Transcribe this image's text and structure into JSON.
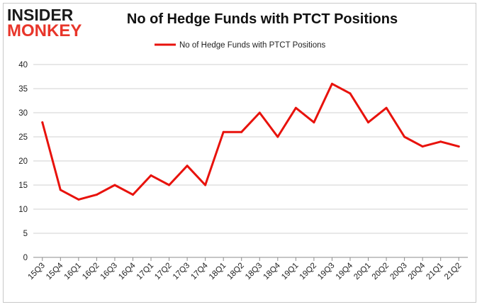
{
  "logo": {
    "top": "INSIDER",
    "bottom": "MONKEY"
  },
  "chart_data": {
    "type": "line",
    "title": "No of Hedge Funds with PTCT Positions",
    "xlabel": "",
    "ylabel": "",
    "ylim": [
      0,
      40
    ],
    "yticks": [
      0,
      5,
      10,
      15,
      20,
      25,
      30,
      35,
      40
    ],
    "grid": true,
    "legend": "top-center",
    "line_color": "#e8120c",
    "categories": [
      "15Q3",
      "15Q4",
      "16Q1",
      "16Q2",
      "16Q3",
      "16Q4",
      "17Q1",
      "17Q2",
      "17Q3",
      "17Q4",
      "18Q1",
      "18Q2",
      "18Q3",
      "18Q4",
      "19Q1",
      "19Q2",
      "19Q3",
      "19Q4",
      "20Q1",
      "20Q2",
      "20Q3",
      "20Q4",
      "21Q1",
      "21Q2"
    ],
    "series": [
      {
        "name": "No of Hedge Funds with PTCT Positions",
        "values": [
          28,
          14,
          12,
          13,
          15,
          13,
          17,
          15,
          19,
          15,
          26,
          26,
          30,
          25,
          31,
          28,
          36,
          34,
          28,
          31,
          25,
          23,
          24,
          23
        ]
      }
    ]
  }
}
